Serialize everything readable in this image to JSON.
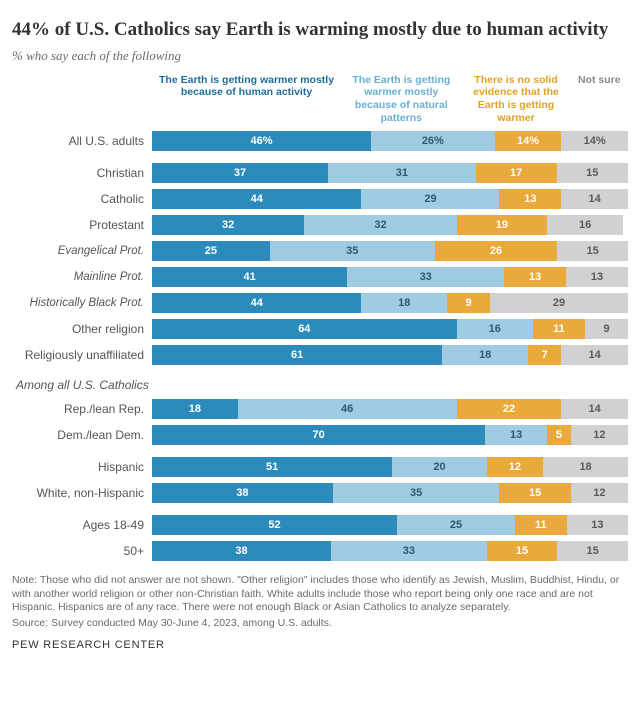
{
  "title": "44% of U.S. Catholics say Earth is warming mostly due to human activity",
  "subtitle": "% who say each of the following",
  "headers": [
    "The Earth is getting warmer mostly because of human activity",
    "The Earth is getting warmer mostly because of natural patterns",
    "There is no solid evidence that the Earth is getting warmer",
    "Not sure"
  ],
  "header_flex": [
    3.2,
    2,
    1.8,
    0.9
  ],
  "header_colors": [
    "#1e6f98",
    "#67b1d3",
    "#e4a024",
    "#888888"
  ],
  "colors": {
    "seg1": "#2d8bbb",
    "seg2": "#9fcce1",
    "seg3": "#e9a93b",
    "seg4": "#d0d1d2"
  },
  "label_colors": {
    "seg1": "#ffffff",
    "seg2": "#2a5a70",
    "seg3": "#ffffff",
    "seg4": "#5a5a5a"
  },
  "groups": [
    {
      "rows": [
        {
          "label": "All U.S. adults",
          "v": [
            46,
            26,
            14,
            14
          ],
          "pct": true
        }
      ]
    },
    {
      "rows": [
        {
          "label": "Christian",
          "v": [
            37,
            31,
            17,
            15
          ]
        },
        {
          "label": "Catholic",
          "indent": 1,
          "v": [
            44,
            29,
            13,
            14
          ]
        },
        {
          "label": "Protestant",
          "indent": 1,
          "v": [
            32,
            32,
            19,
            16
          ]
        },
        {
          "label": "Evangelical Prot.",
          "indent": 2,
          "v": [
            25,
            35,
            26,
            15
          ]
        },
        {
          "label": "Mainline Prot.",
          "indent": 2,
          "v": [
            41,
            33,
            13,
            13
          ]
        },
        {
          "label": "Historically Black Prot.",
          "indent": 2,
          "v": [
            44,
            18,
            9,
            29
          ]
        },
        {
          "label": "Other religion",
          "v": [
            64,
            16,
            11,
            9
          ]
        },
        {
          "label": "Religiously unaffiliated",
          "v": [
            61,
            18,
            7,
            14
          ]
        }
      ]
    },
    {
      "heading": "Among all U.S. Catholics",
      "rows": [
        {
          "label": "Rep./lean Rep.",
          "v": [
            18,
            46,
            22,
            14
          ]
        },
        {
          "label": "Dem./lean Dem.",
          "v": [
            70,
            13,
            5,
            12
          ]
        }
      ]
    },
    {
      "rows": [
        {
          "label": "Hispanic",
          "v": [
            51,
            20,
            12,
            18
          ]
        },
        {
          "label": "White, non-Hispanic",
          "v": [
            38,
            35,
            15,
            12
          ]
        }
      ]
    },
    {
      "rows": [
        {
          "label": "Ages 18-49",
          "v": [
            52,
            25,
            11,
            13
          ]
        },
        {
          "label": "50+",
          "v": [
            38,
            33,
            15,
            15
          ]
        }
      ]
    }
  ],
  "note": "Note: Those who did not answer are not shown. \"Other religion\" includes those who identify as Jewish, Muslim, Buddhist, Hindu, or with another world religion or other non-Christian faith. White adults include those who report being only one race and are not Hispanic. Hispanics are of any race. There were not enough Black or Asian Catholics to analyze separately.",
  "source_text": "Source: Survey conducted May 30-June 4, 2023, among U.S. adults.",
  "footer": "PEW RESEARCH CENTER"
}
